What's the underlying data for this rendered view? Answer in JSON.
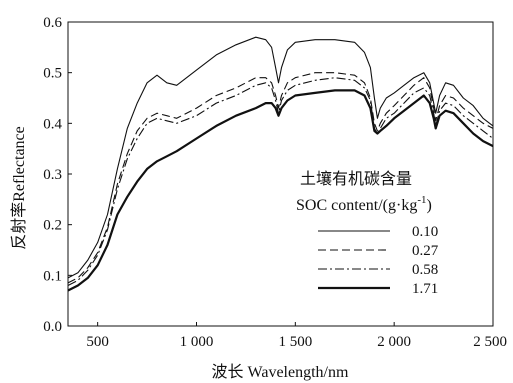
{
  "chart_data": {
    "type": "line",
    "xlabel": "波长 Wavelength/nm",
    "ylabel": "反射率Reflectance",
    "xlim": [
      350,
      2500
    ],
    "ylim": [
      0,
      0.6
    ],
    "x_ticks": [
      500,
      1000,
      1500,
      2000,
      2500
    ],
    "x_tick_labels": [
      "500",
      "1 000",
      "1 500",
      "2 000",
      "2 500"
    ],
    "y_ticks": [
      0,
      0.1,
      0.2,
      0.3,
      0.4,
      0.5,
      0.6
    ],
    "y_tick_labels": [
      "0.0",
      "0.1",
      "0.2",
      "0.3",
      "0.4",
      "0.5",
      "0.6"
    ],
    "legend": {
      "title_line1": "土壤有机碳含量",
      "title_line2": "SOC content/(g·kg",
      "title_line2_sup": "-1",
      "title_line2_end": ")",
      "placement": "center-right"
    },
    "x": [
      350,
      400,
      450,
      500,
      550,
      600,
      650,
      700,
      750,
      800,
      850,
      900,
      1000,
      1100,
      1200,
      1300,
      1350,
      1380,
      1400,
      1415,
      1430,
      1460,
      1500,
      1600,
      1700,
      1800,
      1850,
      1880,
      1900,
      1915,
      1930,
      1960,
      2000,
      2050,
      2100,
      2150,
      2180,
      2200,
      2210,
      2230,
      2260,
      2300,
      2350,
      2400,
      2450,
      2500
    ],
    "series": [
      {
        "name": "0.10",
        "style": "solid",
        "width": 1.1,
        "values": [
          0.095,
          0.105,
          0.13,
          0.165,
          0.22,
          0.31,
          0.39,
          0.44,
          0.48,
          0.495,
          0.48,
          0.475,
          0.505,
          0.535,
          0.555,
          0.57,
          0.565,
          0.55,
          0.51,
          0.48,
          0.51,
          0.545,
          0.56,
          0.565,
          0.565,
          0.56,
          0.54,
          0.51,
          0.45,
          0.41,
          0.43,
          0.45,
          0.46,
          0.475,
          0.49,
          0.5,
          0.48,
          0.44,
          0.42,
          0.455,
          0.48,
          0.475,
          0.45,
          0.435,
          0.41,
          0.395
        ]
      },
      {
        "name": "0.27",
        "style": "dashed",
        "width": 1.1,
        "values": [
          0.085,
          0.095,
          0.115,
          0.145,
          0.195,
          0.28,
          0.34,
          0.385,
          0.41,
          0.42,
          0.415,
          0.41,
          0.43,
          0.455,
          0.47,
          0.49,
          0.49,
          0.48,
          0.455,
          0.43,
          0.455,
          0.48,
          0.49,
          0.5,
          0.5,
          0.495,
          0.48,
          0.45,
          0.4,
          0.385,
          0.4,
          0.42,
          0.435,
          0.455,
          0.475,
          0.49,
          0.47,
          0.43,
          0.405,
          0.435,
          0.455,
          0.45,
          0.43,
          0.415,
          0.4,
          0.39
        ]
      },
      {
        "name": "0.58",
        "style": "dashdot",
        "width": 1.1,
        "values": [
          0.08,
          0.09,
          0.11,
          0.14,
          0.19,
          0.27,
          0.33,
          0.37,
          0.4,
          0.41,
          0.405,
          0.4,
          0.415,
          0.44,
          0.455,
          0.475,
          0.48,
          0.47,
          0.445,
          0.42,
          0.445,
          0.465,
          0.475,
          0.485,
          0.49,
          0.485,
          0.47,
          0.445,
          0.39,
          0.38,
          0.39,
          0.41,
          0.42,
          0.44,
          0.46,
          0.47,
          0.455,
          0.42,
          0.395,
          0.425,
          0.44,
          0.435,
          0.415,
          0.4,
          0.385,
          0.37
        ]
      },
      {
        "name": "1.71",
        "style": "solid",
        "width": 2.2,
        "values": [
          0.07,
          0.08,
          0.095,
          0.12,
          0.16,
          0.22,
          0.255,
          0.285,
          0.31,
          0.325,
          0.335,
          0.345,
          0.37,
          0.395,
          0.415,
          0.43,
          0.44,
          0.44,
          0.43,
          0.415,
          0.43,
          0.445,
          0.455,
          0.46,
          0.465,
          0.465,
          0.455,
          0.43,
          0.385,
          0.38,
          0.385,
          0.395,
          0.41,
          0.425,
          0.44,
          0.455,
          0.44,
          0.41,
          0.39,
          0.415,
          0.425,
          0.42,
          0.4,
          0.38,
          0.365,
          0.355
        ]
      }
    ]
  }
}
